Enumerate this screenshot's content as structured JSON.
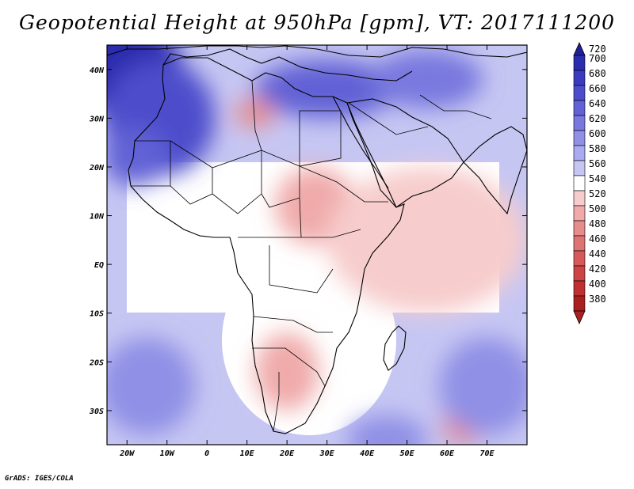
{
  "title": "Geopotential Height at 950hPa [gpm], VT: 2017111200",
  "credit": "GrADS: IGES/COLA",
  "map": {
    "projection": "latlon",
    "lon_range": [
      -25,
      80
    ],
    "lat_range": [
      -37,
      45
    ],
    "lat_ticks": [
      {
        "value": 40,
        "label": "40N"
      },
      {
        "value": 30,
        "label": "30N"
      },
      {
        "value": 20,
        "label": "20N"
      },
      {
        "value": 10,
        "label": "10N"
      },
      {
        "value": 0,
        "label": "EQ"
      },
      {
        "value": -10,
        "label": "10S"
      },
      {
        "value": -20,
        "label": "20S"
      },
      {
        "value": -30,
        "label": "30S"
      }
    ],
    "lon_ticks": [
      {
        "value": -20,
        "label": "20W"
      },
      {
        "value": -10,
        "label": "10W"
      },
      {
        "value": 0,
        "label": "0"
      },
      {
        "value": 10,
        "label": "10E"
      },
      {
        "value": 20,
        "label": "20E"
      },
      {
        "value": 30,
        "label": "30E"
      },
      {
        "value": 40,
        "label": "40E"
      },
      {
        "value": 50,
        "label": "50E"
      },
      {
        "value": 60,
        "label": "60E"
      },
      {
        "value": 70,
        "label": "70E"
      }
    ]
  },
  "colorbar": {
    "levels": [
      720,
      700,
      680,
      660,
      640,
      620,
      600,
      580,
      560,
      540,
      520,
      500,
      480,
      460,
      440,
      420,
      400,
      380
    ],
    "colors": [
      "#20209a",
      "#2c2cae",
      "#3b3bbf",
      "#4d4dcc",
      "#6262d6",
      "#7878df",
      "#9090e6",
      "#aaaaee",
      "#c6c6f3",
      "#ffffff",
      "#f7cccc",
      "#f0aaaa",
      "#e68c8c",
      "#de7373",
      "#d65a5a",
      "#cc4444",
      "#c03030",
      "#aa2020"
    ]
  },
  "field": {
    "blobs": [
      {
        "lon": -20,
        "lat": 40,
        "rx": 14,
        "ry": 10,
        "color": "#2c2cae"
      },
      {
        "lon": -12,
        "lat": 30,
        "rx": 14,
        "ry": 12,
        "color": "#4d4dcc"
      },
      {
        "lon": -18,
        "lat": 22,
        "rx": 8,
        "ry": 6,
        "color": "#6262d6"
      },
      {
        "lon": 30,
        "lat": 36,
        "rx": 18,
        "ry": 6,
        "color": "#6262d6"
      },
      {
        "lon": 55,
        "lat": 38,
        "rx": 14,
        "ry": 6,
        "color": "#7878df"
      },
      {
        "lon": 12,
        "lat": 31,
        "rx": 5,
        "ry": 3,
        "color": "#e68c8c"
      },
      {
        "lon": 27,
        "lat": 12,
        "rx": 10,
        "ry": 8,
        "color": "#f0aaaa"
      },
      {
        "lon": 20,
        "lat": -22,
        "rx": 8,
        "ry": 8,
        "color": "#f0aaaa"
      },
      {
        "lon": 64,
        "lat": -33,
        "rx": 5,
        "ry": 4,
        "color": "#e68c8c"
      },
      {
        "lon": 55,
        "lat": 5,
        "rx": 25,
        "ry": 15,
        "color": "#f7cccc"
      },
      {
        "lon": -15,
        "lat": -25,
        "rx": 12,
        "ry": 10,
        "color": "#9090e6"
      },
      {
        "lon": 70,
        "lat": -25,
        "rx": 12,
        "ry": 10,
        "color": "#9090e6"
      },
      {
        "lon": 45,
        "lat": -36,
        "rx": 10,
        "ry": 5,
        "color": "#9090e6"
      }
    ]
  }
}
